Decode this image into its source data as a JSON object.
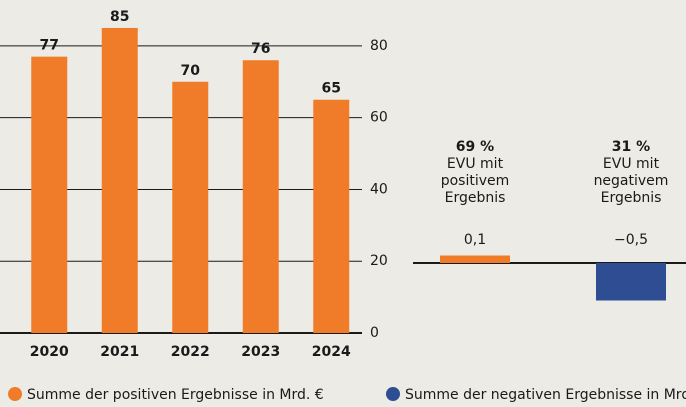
{
  "chart_data": [
    {
      "type": "bar",
      "categories": [
        "2020",
        "2021",
        "2022",
        "2023",
        "2024"
      ],
      "values": [
        77,
        85,
        70,
        76,
        65
      ],
      "color": "#f07c2a",
      "ylim": [
        0,
        90
      ],
      "yticks": [
        0,
        20,
        40,
        60,
        80
      ],
      "grid": true
    },
    {
      "type": "bar",
      "categories": [
        "EVU mit positivem Ergebnis",
        "EVU mit negativem Ergebnis"
      ],
      "shares": [
        "69 %",
        "31 %"
      ],
      "values": [
        0.1,
        -0.5
      ],
      "value_labels": [
        "0,1",
        "−0,5"
      ],
      "colors": [
        "#f07c2a",
        "#2e4d92"
      ]
    }
  ],
  "legend": [
    {
      "name": "Summe der positiven Ergebnisse in Mrd. €",
      "color": "#f07c2a"
    },
    {
      "name": "Summe der negativen Ergebnisse in Mrd. €",
      "color": "#2e4d92"
    }
  ]
}
